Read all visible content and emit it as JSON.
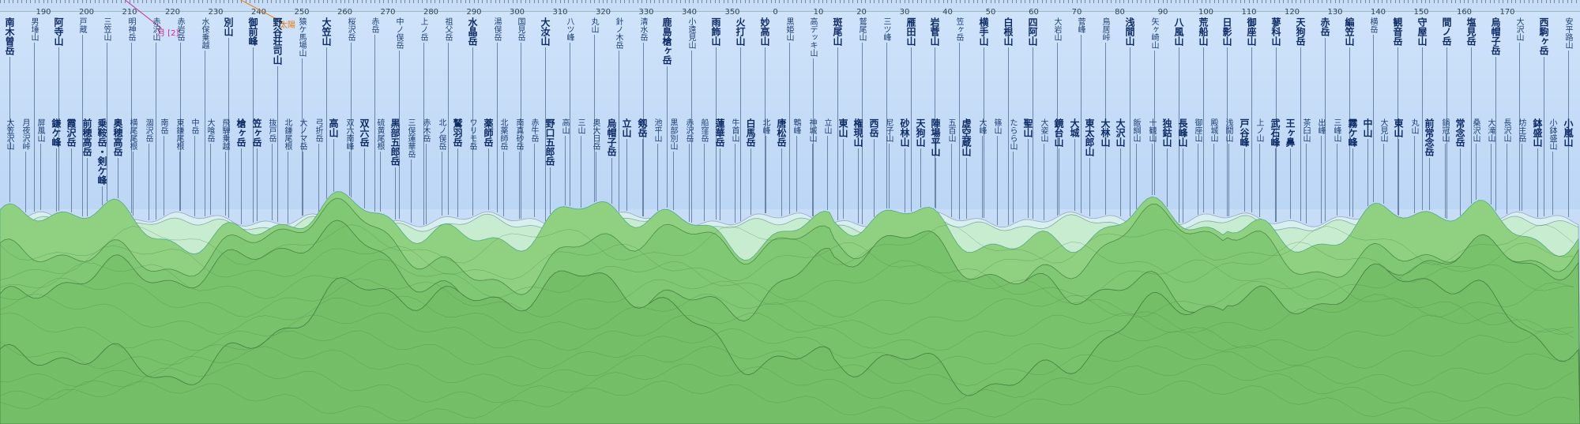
{
  "ruler": {
    "degree_labels": [
      "190",
      "200",
      "210",
      "220",
      "230",
      "240",
      "250",
      "260",
      "270",
      "280",
      "290",
      "300",
      "310",
      "320",
      "330",
      "340",
      "350",
      "0",
      "10",
      "20",
      "30",
      "40",
      "50",
      "60",
      "70",
      "80",
      "90",
      "100",
      "110",
      "120",
      "130",
      "140",
      "150",
      "160",
      "170"
    ]
  },
  "celestial": {
    "sun_label": "太陽",
    "moon_label": "月 [2]"
  },
  "colors": {
    "sky": "#c7ddf7",
    "near_ridge": "#7cc670",
    "far_ridge": "#b8e3b8",
    "label_text": "#1d3d73"
  },
  "peaks_top": [
    {
      "name": "南木曽岳",
      "major": true
    },
    {
      "name": "男埵山",
      "major": false
    },
    {
      "name": "阿寺山",
      "major": true
    },
    {
      "name": "戸蔵",
      "major": false
    },
    {
      "name": "三笠山",
      "major": false
    },
    {
      "name": "明神岳",
      "major": false
    },
    {
      "name": "赤沢山",
      "major": false
    },
    {
      "name": "赤岩岳",
      "major": false
    },
    {
      "name": "水保乗越",
      "major": false
    },
    {
      "name": "別山",
      "major": true
    },
    {
      "name": "御前峰",
      "major": true
    },
    {
      "name": "野谷荘司山",
      "major": true
    },
    {
      "name": "猿ケ馬場山",
      "major": false
    },
    {
      "name": "大笠山",
      "major": true
    },
    {
      "name": "桜沢岳",
      "major": false
    },
    {
      "name": "赤岳",
      "major": false
    },
    {
      "name": "中ノ俣岳",
      "major": false
    },
    {
      "name": "上ノ岳",
      "major": false
    },
    {
      "name": "祖父岳",
      "major": false
    },
    {
      "name": "水晶岳",
      "major": true
    },
    {
      "name": "湯俣岳",
      "major": false
    },
    {
      "name": "国見岳",
      "major": false
    },
    {
      "name": "大汝山",
      "major": true
    },
    {
      "name": "八ツ峰",
      "major": false
    },
    {
      "name": "丸山",
      "major": false
    },
    {
      "name": "針ノ木岳",
      "major": false
    },
    {
      "name": "清水岳",
      "major": false
    },
    {
      "name": "鹿島槍ヶ岳",
      "major": true
    },
    {
      "name": "小遠見山",
      "major": false
    },
    {
      "name": "雨飾山",
      "major": true
    },
    {
      "name": "火打山",
      "major": true
    },
    {
      "name": "妙高山",
      "major": true
    },
    {
      "name": "黒姫山",
      "major": false
    },
    {
      "name": "高デッキ山",
      "major": false
    },
    {
      "name": "斑尾山",
      "major": true
    },
    {
      "name": "鷲尾山",
      "major": false
    },
    {
      "name": "三ツ峰",
      "major": false
    },
    {
      "name": "雁田山",
      "major": true
    },
    {
      "name": "岩菅山",
      "major": true
    },
    {
      "name": "笠ヶ岳",
      "major": false
    },
    {
      "name": "横手山",
      "major": true
    },
    {
      "name": "白根山",
      "major": true
    },
    {
      "name": "四阿山",
      "major": true
    },
    {
      "name": "大岩山",
      "major": false
    },
    {
      "name": "菅峰",
      "major": false
    },
    {
      "name": "鳥居峠",
      "major": false
    },
    {
      "name": "浅間山",
      "major": true
    },
    {
      "name": "矢ヶ崎山",
      "major": false
    },
    {
      "name": "八風山",
      "major": true
    },
    {
      "name": "荒船山",
      "major": true
    },
    {
      "name": "日影山",
      "major": true
    },
    {
      "name": "御座山",
      "major": true
    },
    {
      "name": "蓼科山",
      "major": true
    },
    {
      "name": "天狗岳",
      "major": true
    },
    {
      "name": "赤岳",
      "major": true
    },
    {
      "name": "編笠山",
      "major": true
    },
    {
      "name": "横岳",
      "major": false
    },
    {
      "name": "観音岳",
      "major": true
    },
    {
      "name": "守屋山",
      "major": true
    },
    {
      "name": "間ノ岳",
      "major": true
    },
    {
      "name": "塩見岳",
      "major": true
    },
    {
      "name": "烏帽子岳",
      "major": true
    },
    {
      "name": "大沢山",
      "major": false
    },
    {
      "name": "西駒ヶ岳",
      "major": true
    },
    {
      "name": "安平路山",
      "major": false
    }
  ],
  "peaks_bottom": [
    {
      "name": "大笠沢山",
      "major": false
    },
    {
      "name": "月夜沢峠",
      "major": false
    },
    {
      "name": "屏風山",
      "major": false
    },
    {
      "name": "鎌ケ峰",
      "major": true
    },
    {
      "name": "霞沢岳",
      "major": true
    },
    {
      "name": "前穂高岳",
      "major": true
    },
    {
      "name": "乗鞍岳・剣ケ峰",
      "major": true
    },
    {
      "name": "奥穂高岳",
      "major": true
    },
    {
      "name": "横尾尾根",
      "major": false
    },
    {
      "name": "涸沢岳",
      "major": false
    },
    {
      "name": "南岳",
      "major": false
    },
    {
      "name": "東鎌尾根",
      "major": false
    },
    {
      "name": "中岳",
      "major": false
    },
    {
      "name": "大喰岳",
      "major": false
    },
    {
      "name": "飛騨乗越",
      "major": false
    },
    {
      "name": "槍ヶ岳",
      "major": true
    },
    {
      "name": "笠ヶ岳",
      "major": true
    },
    {
      "name": "抜戸岳",
      "major": false
    },
    {
      "name": "北鎌尾根",
      "major": false
    },
    {
      "name": "大ノマ岳",
      "major": false
    },
    {
      "name": "弓折岳",
      "major": false
    },
    {
      "name": "高山",
      "major": true
    },
    {
      "name": "双六南峰",
      "major": false
    },
    {
      "name": "双六岳",
      "major": true
    },
    {
      "name": "硫黄尾根",
      "major": false
    },
    {
      "name": "黒部五郎岳",
      "major": true
    },
    {
      "name": "三俣蓮華岳",
      "major": false
    },
    {
      "name": "赤木岳",
      "major": false
    },
    {
      "name": "北ノ俣岳",
      "major": false
    },
    {
      "name": "鷲羽岳",
      "major": true
    },
    {
      "name": "ワリモ岳",
      "major": false
    },
    {
      "name": "薬師岳",
      "major": true
    },
    {
      "name": "北薬師岳",
      "major": false
    },
    {
      "name": "南真砂岳",
      "major": false
    },
    {
      "name": "赤牛岳",
      "major": false
    },
    {
      "name": "野口五郎岳",
      "major": true
    },
    {
      "name": "高山",
      "major": false
    },
    {
      "name": "三山",
      "major": false
    },
    {
      "name": "奥大日岳",
      "major": false
    },
    {
      "name": "烏帽子岳",
      "major": true
    },
    {
      "name": "立山",
      "major": true
    },
    {
      "name": "剱岳",
      "major": true
    },
    {
      "name": "池平山",
      "major": false
    },
    {
      "name": "黒部別山",
      "major": false
    },
    {
      "name": "赤沢岳",
      "major": false
    },
    {
      "name": "船窪岳",
      "major": false
    },
    {
      "name": "蓮華岳",
      "major": true
    },
    {
      "name": "牛首山",
      "major": false
    },
    {
      "name": "白馬岳",
      "major": true
    },
    {
      "name": "北峰",
      "major": false
    },
    {
      "name": "唐松岳",
      "major": true
    },
    {
      "name": "鵯峰",
      "major": false
    },
    {
      "name": "神城山",
      "major": false
    },
    {
      "name": "立山",
      "major": false
    },
    {
      "name": "東山",
      "major": true
    },
    {
      "name": "権現山",
      "major": true
    },
    {
      "name": "西岳",
      "major": true
    },
    {
      "name": "尼子山",
      "major": false
    },
    {
      "name": "砂林山",
      "major": true
    },
    {
      "name": "天狗山",
      "major": true
    },
    {
      "name": "陣場平山",
      "major": true
    },
    {
      "name": "五百山",
      "major": false
    },
    {
      "name": "虚空蔵山",
      "major": true
    },
    {
      "name": "大峰",
      "major": false
    },
    {
      "name": "篠山",
      "major": false
    },
    {
      "name": "たらら山",
      "major": false
    },
    {
      "name": "聖山",
      "major": true
    },
    {
      "name": "大姿山",
      "major": false
    },
    {
      "name": "鏡台山",
      "major": true
    },
    {
      "name": "大城",
      "major": true
    },
    {
      "name": "東太郎山",
      "major": true
    },
    {
      "name": "大林山",
      "major": true
    },
    {
      "name": "大沢山",
      "major": true
    },
    {
      "name": "飯綱山",
      "major": false
    },
    {
      "name": "十観山",
      "major": false
    },
    {
      "name": "独鈷山",
      "major": true
    },
    {
      "name": "長峰山",
      "major": true
    },
    {
      "name": "御座山",
      "major": false
    },
    {
      "name": "殿城山",
      "major": false
    },
    {
      "name": "浅間山",
      "major": false
    },
    {
      "name": "戸谷峰",
      "major": true
    },
    {
      "name": "上ノ山",
      "major": false
    },
    {
      "name": "武石峰",
      "major": true
    },
    {
      "name": "王ヶ鼻",
      "major": true
    },
    {
      "name": "茶臼山",
      "major": false
    },
    {
      "name": "出峰",
      "major": false
    },
    {
      "name": "三峰山",
      "major": false
    },
    {
      "name": "霧ケ峰",
      "major": true
    },
    {
      "name": "中山",
      "major": true
    },
    {
      "name": "大見山",
      "major": false
    },
    {
      "name": "東山",
      "major": true
    },
    {
      "name": "丸山",
      "major": false
    },
    {
      "name": "前常念岳",
      "major": true
    },
    {
      "name": "鍋冠山",
      "major": false
    },
    {
      "name": "常念岳",
      "major": true
    },
    {
      "name": "桑沢山",
      "major": false
    },
    {
      "name": "大滝山",
      "major": false
    },
    {
      "name": "長沢山",
      "major": false
    },
    {
      "name": "坊主岳",
      "major": false
    },
    {
      "name": "鉢盛山",
      "major": true
    },
    {
      "name": "小鉢盛山",
      "major": false
    },
    {
      "name": "小嵐山",
      "major": true
    }
  ]
}
